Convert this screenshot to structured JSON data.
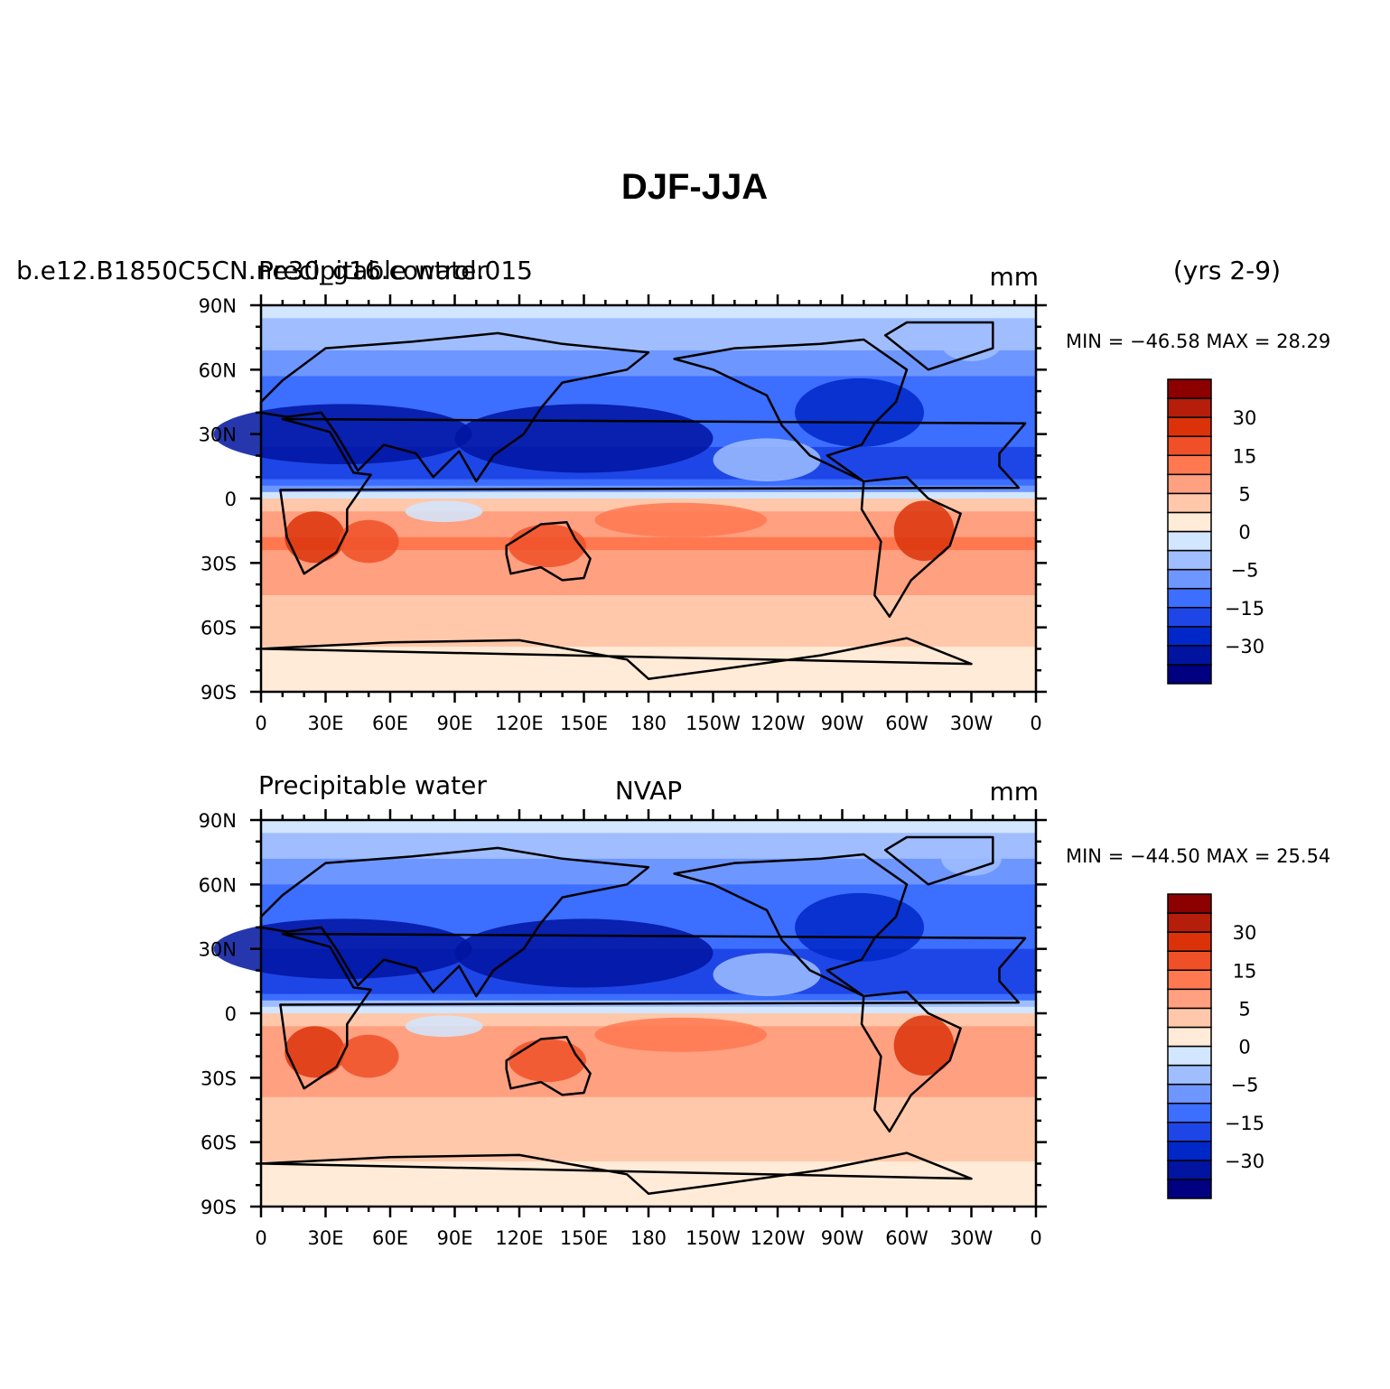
{
  "figure": {
    "title": "DJF-JJA"
  },
  "chart_data": [
    {
      "type": "heatmap",
      "panel": "top",
      "left_title_1": "b.e12.B1850C5CN.ne30_g16.control.015",
      "left_title_2": "Precipitable water",
      "center_title": "",
      "units": "mm",
      "right_note": "(yrs 2-9)",
      "stats_text": "MIN = −46.58  MAX =   28.29",
      "min": -46.58,
      "max": 28.29,
      "x_ticks": [
        "0",
        "30E",
        "60E",
        "90E",
        "120E",
        "150E",
        "180",
        "150W",
        "120W",
        "90W",
        "60W",
        "30W",
        "0"
      ],
      "y_ticks": [
        "90N",
        "60N",
        "30N",
        "0",
        "30S",
        "60S",
        "90S"
      ],
      "xlim": [
        0,
        360
      ],
      "ylim": [
        -90,
        90
      ],
      "zonal_profile": {
        "lat": [
          90,
          80,
          70,
          60,
          50,
          40,
          30,
          20,
          10,
          5,
          0,
          -5,
          -10,
          -20,
          -30,
          -40,
          -50,
          -60,
          -70,
          -80,
          -90
        ],
        "value": [
          -4,
          -6,
          -10,
          -14,
          -17,
          -22,
          -24,
          -26,
          -27,
          -12,
          3,
          5,
          8,
          11,
          9,
          6,
          4,
          3,
          2,
          1,
          1
        ]
      }
    },
    {
      "type": "heatmap",
      "panel": "bottom",
      "left_title_1": "Precipitable water",
      "left_title_2": "",
      "center_title": "NVAP",
      "units": "mm",
      "right_note": "",
      "stats_text": "MIN = −44.50  MAX =   25.54",
      "min": -44.5,
      "max": 25.54,
      "x_ticks": [
        "0",
        "30E",
        "60E",
        "90E",
        "120E",
        "150E",
        "180",
        "150W",
        "120W",
        "90W",
        "60W",
        "30W",
        "0"
      ],
      "y_ticks": [
        "90N",
        "60N",
        "30N",
        "0",
        "30S",
        "60S",
        "90S"
      ],
      "xlim": [
        0,
        360
      ],
      "ylim": [
        -90,
        90
      ],
      "zonal_profile": {
        "lat": [
          90,
          80,
          70,
          60,
          50,
          40,
          30,
          20,
          10,
          5,
          0,
          -5,
          -10,
          -20,
          -30,
          -40,
          -50,
          -60,
          -70,
          -80,
          -90
        ],
        "value": [
          -4,
          -6,
          -11,
          -15,
          -18,
          -23,
          -25,
          -26,
          -26,
          -10,
          3,
          5,
          8,
          10,
          8,
          5,
          3,
          3,
          2,
          1,
          1
        ]
      }
    }
  ],
  "colorbar": {
    "colors": [
      "#000080",
      "#0014a0",
      "#0028c8",
      "#1e46e6",
      "#3c6eff",
      "#6e96ff",
      "#a0beff",
      "#d2e6ff",
      "#ffebd7",
      "#ffc8aa",
      "#ffa080",
      "#ff7850",
      "#f05028",
      "#dc320a",
      "#b41e0a",
      "#8c0000"
    ],
    "labels": [
      {
        "text": "−30",
        "boundary": 2
      },
      {
        "text": "−15",
        "boundary": 4
      },
      {
        "text": "−5",
        "boundary": 6
      },
      {
        "text": "0",
        "boundary": 8
      },
      {
        "text": "5",
        "boundary": 10
      },
      {
        "text": "15",
        "boundary": 12
      },
      {
        "text": "30",
        "boundary": 14
      }
    ]
  }
}
